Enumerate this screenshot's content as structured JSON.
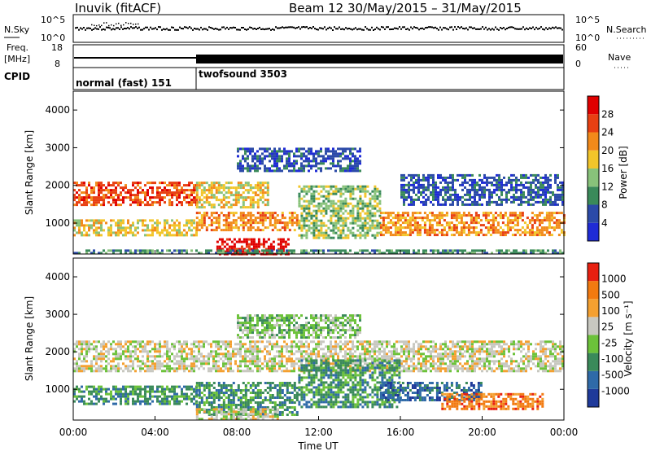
{
  "header": {
    "station_title": "Inuvik (fitACF)",
    "beam_title": "Beam 12  30/May/2015 – 31/May/2015"
  },
  "top_panels": {
    "nsky_label": "N.Sky",
    "nsearch_label": "N.Search",
    "nsearch_ticks": [
      "10^5",
      "10^0"
    ],
    "nsky_ticks": [
      "10^5",
      "10^0"
    ],
    "freq_label": "Freq.",
    "freq_unit": "[MHz]",
    "freq_ticks": [
      "18",
      "8"
    ],
    "nave_label": "Nave",
    "nave_ticks": [
      "60",
      "0"
    ],
    "cpid_label": "CPID",
    "cpid_segments": [
      {
        "label": "normal (fast) 151",
        "start_hour": 0,
        "end_hour": 6
      },
      {
        "label": "twofsound 3503",
        "start_hour": 6,
        "end_hour": 24
      }
    ]
  },
  "chart_data": [
    {
      "type": "heatmap",
      "name": "power",
      "ylabel": "Slant Range [km]",
      "ylim": [
        180,
        4500
      ],
      "yticks": [
        "1000",
        "2000",
        "3000",
        "4000"
      ],
      "xlim": [
        0,
        24
      ],
      "colorbar": {
        "label": "Power [dB]",
        "ticks": [
          "28",
          "24",
          "20",
          "16",
          "12",
          "8",
          "4"
        ],
        "colors": [
          "#1f2bd6",
          "#2b4aa8",
          "#3a8a5a",
          "#88c27a",
          "#f2c52a",
          "#f28a1a",
          "#e84012",
          "#e00000"
        ]
      },
      "bands": [
        {
          "x0": 0,
          "x1": 6,
          "y0": 1500,
          "y1": 2100,
          "level": 6
        },
        {
          "x0": 0,
          "x1": 6,
          "y0": 700,
          "y1": 1100,
          "level": 4
        },
        {
          "x0": 6,
          "x1": 9.5,
          "y0": 1400,
          "y1": 2100,
          "level": 4
        },
        {
          "x0": 7,
          "x1": 10.5,
          "y0": 200,
          "y1": 600,
          "level": 7
        },
        {
          "x0": 6,
          "x1": 11,
          "y0": 800,
          "y1": 1300,
          "level": 5
        },
        {
          "x0": 11,
          "x1": 15,
          "y0": 600,
          "y1": 2000,
          "level": 3
        },
        {
          "x0": 15,
          "x1": 24,
          "y0": 700,
          "y1": 1300,
          "level": 5
        },
        {
          "x0": 16,
          "x1": 24,
          "y0": 1500,
          "y1": 2300,
          "level": 1
        },
        {
          "x0": 8,
          "x1": 14,
          "y0": 2400,
          "y1": 3000,
          "level": 1
        },
        {
          "x0": 0,
          "x1": 24,
          "y0": 180,
          "y1": 300,
          "level": 2
        }
      ]
    },
    {
      "type": "heatmap",
      "name": "velocity",
      "ylabel": "Slant Range [km]",
      "ylim": [
        180,
        4500
      ],
      "yticks": [
        "1000",
        "2000",
        "3000",
        "4000"
      ],
      "xlim": [
        0,
        24
      ],
      "xticks": [
        "00:00",
        "04:00",
        "08:00",
        "12:00",
        "16:00",
        "20:00",
        "00:00"
      ],
      "xlabel": "Time UT",
      "colorbar": {
        "label": "Velocity [m s⁻¹]",
        "ticks": [
          "1000",
          "500",
          "100",
          "25",
          "-25",
          "-100",
          "-500",
          "-1000"
        ],
        "colors": [
          "#1f3a9a",
          "#2f6aa8",
          "#3a8a5a",
          "#6cc23a",
          "#c8c8c0",
          "#f4a030",
          "#f27a10",
          "#e82010"
        ]
      },
      "bands": [
        {
          "x0": 0,
          "x1": 24,
          "y0": 1500,
          "y1": 2300,
          "level": 4
        },
        {
          "x0": 0,
          "x1": 6,
          "y0": 600,
          "y1": 1100,
          "level": 2
        },
        {
          "x0": 6,
          "x1": 11,
          "y0": 300,
          "y1": 1200,
          "level": 2
        },
        {
          "x0": 11,
          "x1": 16,
          "y0": 500,
          "y1": 1800,
          "level": 2
        },
        {
          "x0": 15,
          "x1": 20,
          "y0": 700,
          "y1": 1200,
          "level": 1
        },
        {
          "x0": 18,
          "x1": 23,
          "y0": 500,
          "y1": 900,
          "level": 6
        },
        {
          "x0": 6,
          "x1": 10,
          "y0": 180,
          "y1": 500,
          "level": 4
        },
        {
          "x0": 8,
          "x1": 14,
          "y0": 2400,
          "y1": 3000,
          "level": 3
        }
      ]
    }
  ]
}
